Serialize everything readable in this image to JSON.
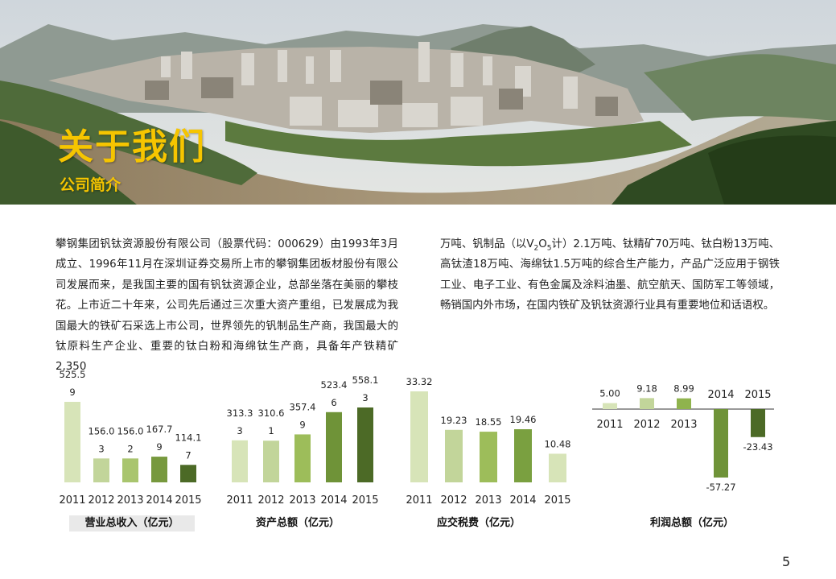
{
  "header": {
    "title": "关于我们",
    "subtitle": "公司简介"
  },
  "intro": {
    "col1": "攀钢集团钒钛资源股份有限公司（股票代码：000629）由1993年3月成立、1996年11月在深圳证券交易所上市的攀钢集团板材股份有限公司发展而来，是我国主要的国有钒钛资源企业，总部坐落在美丽的攀枝花。上市近二十年来，公司先后通过三次重大资产重组，已发展成为我国最大的铁矿石采选上市公司，世界领先的钒制品生产商，我国最大的钛原料生产企业、重要的钛白粉和海绵钛生产商，具备年产铁精矿2,350",
    "col2_a": "万吨、钒制品（以V",
    "col2_sub1": "2",
    "col2_b": "O",
    "col2_sub2": "5",
    "col2_c": "计）2.1万吨、钛精矿70万吨、钛白粉13万吨、高钛渣18万吨、海绵钛1.5万吨的综合生产能力，产品广泛应用于钢铁工业、电子工业、有色金属及涂料油墨、航空航天、国防军工等领域，畅销国内外市场，在国内铁矿及钒钛资源行业具有重要地位和话语权。"
  },
  "chart_data": [
    {
      "type": "bar",
      "title": "营业总收入（亿元）",
      "categories": [
        "2011",
        "2012",
        "2013",
        "2014",
        "2015"
      ],
      "values": [
        525.59,
        156.03,
        156.02,
        167.79,
        114.17
      ],
      "labels": [
        [
          "525.5",
          "9"
        ],
        [
          "156.0",
          "3"
        ],
        [
          "156.0",
          "2"
        ],
        [
          "167.7",
          "9"
        ],
        [
          "114.1",
          "7"
        ]
      ],
      "colors": [
        "#d7e4b8",
        "#c2d59a",
        "#a9c56e",
        "#77993e",
        "#4c6a26"
      ]
    },
    {
      "type": "bar",
      "title": "资产总额（亿元）",
      "categories": [
        "2011",
        "2012",
        "2013",
        "2014",
        "2015"
      ],
      "values": [
        313.33,
        310.61,
        357.49,
        523.46,
        558.13
      ],
      "labels": [
        [
          "313.3",
          "3"
        ],
        [
          "310.6",
          "1"
        ],
        [
          "357.4",
          "9"
        ],
        [
          "523.4",
          "6"
        ],
        [
          "558.1",
          "3"
        ]
      ],
      "colors": [
        "#d7e4b8",
        "#c2d59a",
        "#9dbd5a",
        "#6f9338",
        "#4c6a26"
      ]
    },
    {
      "type": "bar",
      "title": "应交税费（亿元）",
      "categories": [
        "2011",
        "2012",
        "2013",
        "2014",
        "2015"
      ],
      "values": [
        33.32,
        19.23,
        18.55,
        19.46,
        10.48
      ],
      "labels": [
        [
          "33.32"
        ],
        [
          "19.23"
        ],
        [
          "18.55"
        ],
        [
          "19.46"
        ],
        [
          "10.48"
        ]
      ],
      "colors": [
        "#d7e4b8",
        "#c2d59a",
        "#9dbd5a",
        "#7aa040",
        "#d7e4b8"
      ]
    },
    {
      "type": "bar",
      "title": "利润总额（亿元）",
      "categories": [
        "2011",
        "2012",
        "2013",
        "2014",
        "2015"
      ],
      "values": [
        5.0,
        9.18,
        8.99,
        -57.27,
        -23.43
      ],
      "labels": [
        [
          "5.00"
        ],
        [
          "9.18"
        ],
        [
          "8.99"
        ],
        [
          "-57.27"
        ],
        [
          "-23.43"
        ]
      ],
      "colors": [
        "#d7e4b8",
        "#c2d59a",
        "#8fb34d",
        "#6f9338",
        "#4c6a26"
      ]
    }
  ],
  "page": {
    "number": "5"
  }
}
